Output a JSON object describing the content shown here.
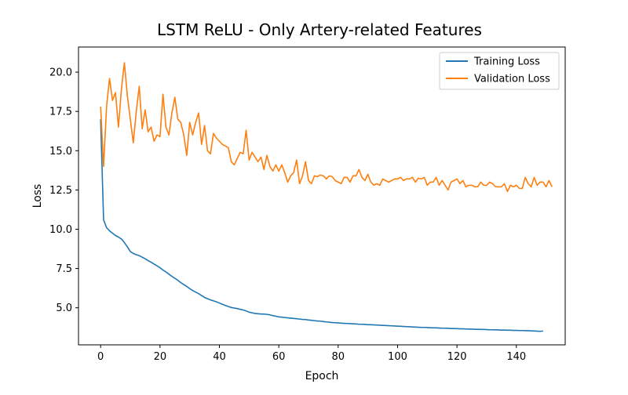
{
  "chart_data": {
    "type": "line",
    "title": "LSTM ReLU - Only Artery-related Features",
    "xlabel": "Epoch",
    "ylabel": "Loss",
    "xlim": [
      -7.45,
      156.45
    ],
    "ylim": [
      2.64,
      21.6
    ],
    "xticks": [
      0,
      20,
      40,
      60,
      80,
      100,
      120,
      140
    ],
    "yticks": [
      5.0,
      7.5,
      10.0,
      12.5,
      15.0,
      17.5,
      20.0
    ],
    "legend_position": "top-right",
    "series": [
      {
        "name": "Training Loss",
        "color": "#1f77b4",
        "values": [
          17.0,
          10.6,
          10.1,
          9.9,
          9.75,
          9.6,
          9.5,
          9.38,
          9.15,
          8.88,
          8.58,
          8.46,
          8.38,
          8.32,
          8.22,
          8.12,
          8.0,
          7.9,
          7.78,
          7.67,
          7.55,
          7.4,
          7.28,
          7.14,
          7.0,
          6.88,
          6.75,
          6.6,
          6.48,
          6.36,
          6.22,
          6.1,
          6.0,
          5.9,
          5.78,
          5.66,
          5.58,
          5.5,
          5.44,
          5.38,
          5.3,
          5.22,
          5.15,
          5.08,
          5.02,
          4.98,
          4.95,
          4.9,
          4.86,
          4.8,
          4.72,
          4.68,
          4.64,
          4.62,
          4.6,
          4.6,
          4.58,
          4.55,
          4.5,
          4.46,
          4.42,
          4.4,
          4.38,
          4.36,
          4.34,
          4.32,
          4.3,
          4.28,
          4.26,
          4.25,
          4.22,
          4.2,
          4.18,
          4.16,
          4.15,
          4.12,
          4.1,
          4.08,
          4.06,
          4.05,
          4.04,
          4.02,
          4.01,
          4.0,
          3.99,
          3.98,
          3.97,
          3.95,
          3.95,
          3.94,
          3.92,
          3.92,
          3.91,
          3.9,
          3.89,
          3.88,
          3.87,
          3.86,
          3.85,
          3.84,
          3.83,
          3.82,
          3.81,
          3.8,
          3.79,
          3.78,
          3.77,
          3.76,
          3.75,
          3.75,
          3.74,
          3.73,
          3.72,
          3.72,
          3.71,
          3.7,
          3.7,
          3.69,
          3.68,
          3.68,
          3.67,
          3.66,
          3.66,
          3.65,
          3.64,
          3.64,
          3.63,
          3.63,
          3.62,
          3.62,
          3.61,
          3.6,
          3.6,
          3.59,
          3.59,
          3.58,
          3.58,
          3.57,
          3.57,
          3.56,
          3.56,
          3.55,
          3.55,
          3.54,
          3.54,
          3.53,
          3.52,
          3.51,
          3.5,
          3.52
        ]
      },
      {
        "name": "Validation Loss",
        "color": "#ff7f0e",
        "values": [
          17.8,
          14.0,
          17.8,
          19.6,
          18.2,
          18.7,
          16.5,
          18.9,
          20.6,
          18.5,
          17.0,
          15.5,
          17.5,
          19.1,
          16.4,
          17.6,
          16.2,
          16.5,
          15.6,
          16.0,
          15.9,
          18.6,
          16.5,
          16.0,
          17.4,
          18.4,
          17.0,
          16.8,
          16.0,
          14.7,
          16.8,
          16.0,
          16.8,
          17.4,
          15.4,
          16.6,
          15.0,
          14.8,
          16.1,
          15.8,
          15.6,
          15.4,
          15.3,
          15.2,
          14.3,
          14.1,
          14.5,
          14.9,
          14.8,
          16.3,
          14.4,
          14.9,
          14.6,
          14.3,
          14.6,
          13.8,
          14.7,
          14.0,
          13.7,
          14.1,
          13.7,
          14.1,
          13.6,
          13.0,
          13.4,
          13.6,
          14.4,
          12.9,
          13.4,
          14.3,
          13.1,
          12.9,
          13.4,
          13.35,
          13.45,
          13.4,
          13.2,
          13.4,
          13.35,
          13.1,
          13.0,
          12.9,
          13.3,
          13.3,
          13.0,
          13.4,
          13.4,
          13.8,
          13.3,
          13.1,
          13.5,
          13.0,
          12.8,
          12.9,
          12.8,
          13.2,
          13.1,
          13.0,
          13.1,
          13.2,
          13.2,
          13.3,
          13.1,
          13.2,
          13.2,
          13.3,
          13.0,
          13.25,
          13.2,
          13.3,
          12.8,
          13.0,
          13.0,
          13.3,
          12.8,
          13.1,
          12.8,
          12.5,
          13.0,
          13.1,
          13.2,
          12.9,
          13.1,
          12.7,
          12.8,
          12.8,
          12.7,
          12.7,
          13.0,
          12.8,
          12.8,
          13.0,
          12.9,
          12.7,
          12.7,
          12.7,
          12.9,
          12.4,
          12.8,
          12.7,
          12.8,
          12.6,
          12.6,
          13.3,
          12.9,
          12.7,
          13.3,
          12.8,
          13.0,
          13.0,
          12.7,
          13.1,
          12.7
        ]
      }
    ]
  }
}
